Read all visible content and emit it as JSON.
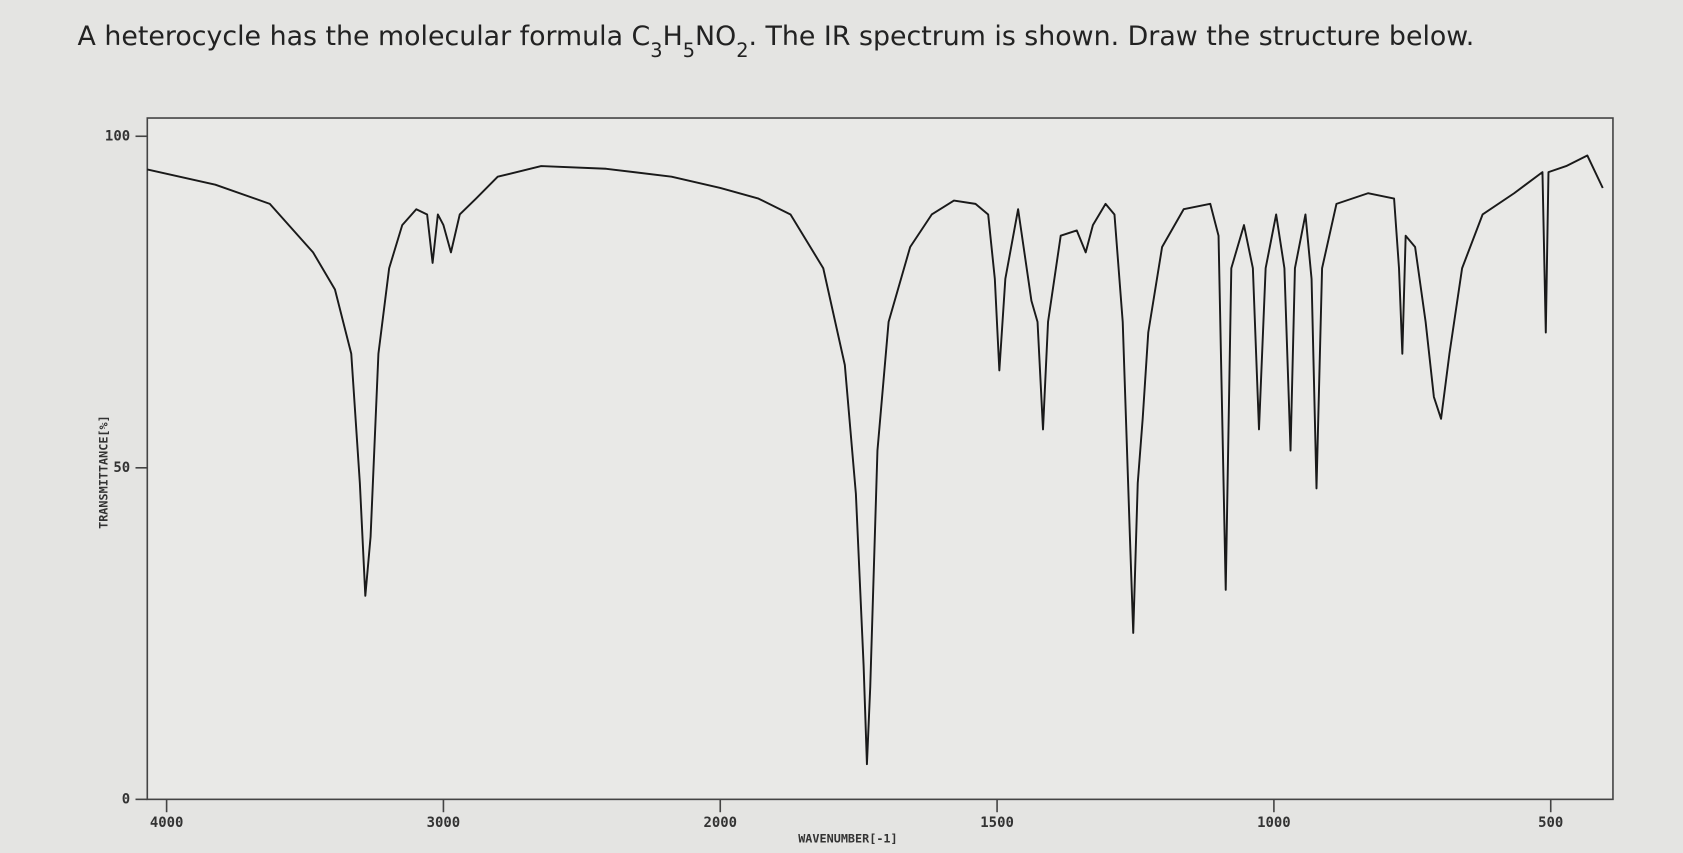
{
  "question": [
    {
      "text": "A heterocycle has the molecular formula C"
    },
    {
      "text": "3",
      "sub": true
    },
    {
      "text": "H"
    },
    {
      "text": "5",
      "sub": true
    },
    {
      "text": "NO"
    },
    {
      "text": "2",
      "sub": true
    },
    {
      "text": ". The IR spectrum is shown. Draw the structure below."
    }
  ],
  "chart_data": {
    "type": "line",
    "xlabel": "WAVENUMBER[-1]",
    "ylabel": "TRANSMITTANCE[%]",
    "color": "#1a1a1a",
    "xlim": [
      4070,
      387
    ],
    "xticks": [
      4000,
      3000,
      2000,
      1500,
      1000,
      500
    ],
    "ylim": [
      0,
      100
    ],
    "yticks": [
      0,
      50,
      100
    ],
    "x": [
      4070,
      3824,
      3627,
      3471,
      3392,
      3333,
      3302,
      3282,
      3263,
      3235,
      3196,
      3149,
      3098,
      3059,
      3039,
      3020,
      3000,
      2973,
      2941,
      2882,
      2804,
      2647,
      2412,
      2176,
      2000,
      1931,
      1873,
      1814,
      1775,
      1755,
      1741,
      1735,
      1729,
      1716,
      1696,
      1657,
      1618,
      1578,
      1539,
      1516,
      1504,
      1496,
      1485,
      1462,
      1438,
      1427,
      1417,
      1408,
      1385,
      1356,
      1340,
      1327,
      1304,
      1288,
      1273,
      1260,
      1254,
      1246,
      1237,
      1227,
      1202,
      1163,
      1115,
      1100,
      1087,
      1077,
      1054,
      1038,
      1027,
      1015,
      996,
      981,
      970,
      962,
      943,
      932,
      923,
      913,
      887,
      830,
      783,
      774,
      768,
      762,
      745,
      726,
      711,
      698,
      683,
      660,
      623,
      566,
      515,
      509,
      504,
      472,
      434,
      406
    ],
    "values": [
      95,
      92.7,
      89.8,
      82.5,
      76.9,
      67.2,
      47.7,
      30.7,
      39.6,
      67.2,
      80.1,
      86.6,
      89,
      88.2,
      80.9,
      88.2,
      86.6,
      82.5,
      88.2,
      90.6,
      93.9,
      95.5,
      95.1,
      93.9,
      92.2,
      90.6,
      88.2,
      80.1,
      65.5,
      46.1,
      20.2,
      5.3,
      17,
      52.6,
      72,
      83.3,
      88.2,
      90.3,
      89.8,
      88.2,
      78.5,
      64.7,
      78.5,
      89,
      75.2,
      72,
      55.8,
      72,
      85,
      85.8,
      82.5,
      86.6,
      89.8,
      88.2,
      72,
      39.6,
      25.1,
      47.7,
      57.4,
      70.4,
      83.3,
      89,
      89.8,
      85,
      31.6,
      80.1,
      86.6,
      80.1,
      55.8,
      80.1,
      88.2,
      80.1,
      52.6,
      80.1,
      88.2,
      78.5,
      46.9,
      80.1,
      89.8,
      91.4,
      90.6,
      80.1,
      67.2,
      85,
      83.3,
      72,
      60.7,
      57.4,
      67.2,
      80.1,
      88.2,
      91.4,
      94.6,
      70.4,
      94.6,
      95.5,
      97.1,
      92.2
    ]
  }
}
